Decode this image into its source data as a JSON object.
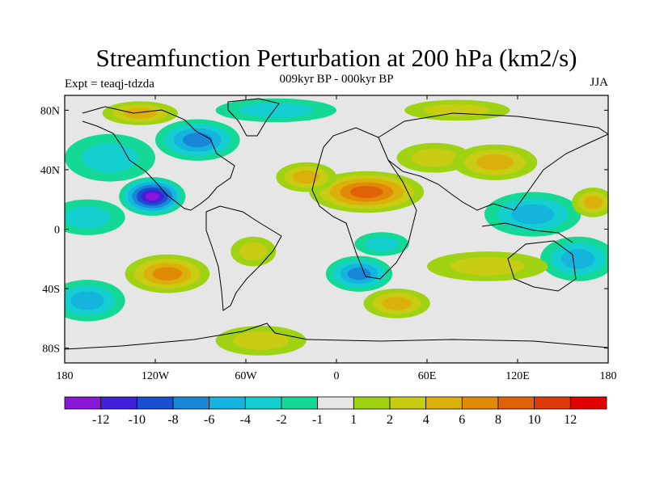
{
  "chart_data": {
    "type": "heatmap",
    "title": "Streamfunction Perturbation at 200 hPa (km2/s)",
    "subtitle": "009kyr BP - 000kyr BP",
    "left_label": "Expt = teaqj-tdzda",
    "right_label": "JJA",
    "x_range": [
      -180,
      180
    ],
    "y_range": [
      -90,
      90
    ],
    "x_ticks": [
      {
        "value": -180,
        "label": "180"
      },
      {
        "value": -120,
        "label": "120W"
      },
      {
        "value": -60,
        "label": "60W"
      },
      {
        "value": 0,
        "label": "0"
      },
      {
        "value": 60,
        "label": "60E"
      },
      {
        "value": 120,
        "label": "120E"
      },
      {
        "value": 180,
        "label": "180"
      }
    ],
    "y_ticks": [
      {
        "value": 80,
        "label": "80N"
      },
      {
        "value": 40,
        "label": "40N"
      },
      {
        "value": 0,
        "label": "0"
      },
      {
        "value": -40,
        "label": "40S"
      },
      {
        "value": -80,
        "label": "80S"
      }
    ],
    "colorbar": {
      "levels": [
        -14,
        -12,
        -10,
        -8,
        -6,
        -4,
        -2,
        -1,
        1,
        2,
        4,
        6,
        8,
        10,
        12,
        14
      ],
      "colors": [
        "#8a16d8",
        "#4020d8",
        "#1a4fd0",
        "#1a86d8",
        "#14b4de",
        "#13cfd0",
        "#14d896",
        "#e6e6e6",
        "#a0d214",
        "#c8cc12",
        "#dcb00a",
        "#e08a08",
        "#e06206",
        "#dc3a0a",
        "#e00000"
      ],
      "labels": [
        {
          "value": -12,
          "label": "-12"
        },
        {
          "value": -10,
          "label": "-10"
        },
        {
          "value": -8,
          "label": "-8"
        },
        {
          "value": -6,
          "label": "-6"
        },
        {
          "value": -4,
          "label": "-4"
        },
        {
          "value": -2,
          "label": "-2"
        },
        {
          "value": -1,
          "label": "-1"
        },
        {
          "value": 1,
          "label": "1"
        },
        {
          "value": 2,
          "label": "2"
        },
        {
          "value": 4,
          "label": "4"
        },
        {
          "value": 6,
          "label": "6"
        },
        {
          "value": 8,
          "label": "8"
        },
        {
          "value": 10,
          "label": "10"
        },
        {
          "value": 12,
          "label": "12"
        }
      ]
    },
    "field_centers": [
      {
        "lon": -122,
        "lat": 22,
        "value": -13,
        "rx": 22,
        "ry": 13
      },
      {
        "lon": -92,
        "lat": 60,
        "value": -7,
        "rx": 28,
        "ry": 14
      },
      {
        "lon": -150,
        "lat": 48,
        "value": -3,
        "rx": 30,
        "ry": 16
      },
      {
        "lon": -165,
        "lat": 8,
        "value": -3,
        "rx": 25,
        "ry": 12
      },
      {
        "lon": -40,
        "lat": 80,
        "value": -3,
        "rx": 40,
        "ry": 8
      },
      {
        "lon": 20,
        "lat": 25,
        "value": 9,
        "rx": 38,
        "ry": 14
      },
      {
        "lon": -20,
        "lat": 35,
        "value": 5,
        "rx": 20,
        "ry": 10
      },
      {
        "lon": 65,
        "lat": 48,
        "value": 3,
        "rx": 25,
        "ry": 10
      },
      {
        "lon": 105,
        "lat": 45,
        "value": 5,
        "rx": 28,
        "ry": 12
      },
      {
        "lon": 130,
        "lat": 10,
        "value": -5,
        "rx": 32,
        "ry": 15
      },
      {
        "lon": 160,
        "lat": -20,
        "value": -4,
        "rx": 25,
        "ry": 15
      },
      {
        "lon": 170,
        "lat": 18,
        "value": 4,
        "rx": 14,
        "ry": 10
      },
      {
        "lon": -112,
        "lat": -30,
        "value": 6,
        "rx": 28,
        "ry": 13
      },
      {
        "lon": -165,
        "lat": -48,
        "value": -5,
        "rx": 25,
        "ry": 14
      },
      {
        "lon": 15,
        "lat": -30,
        "value": -7,
        "rx": 22,
        "ry": 12
      },
      {
        "lon": 40,
        "lat": -50,
        "value": 5,
        "rx": 22,
        "ry": 10
      },
      {
        "lon": 100,
        "lat": -25,
        "value": 3,
        "rx": 40,
        "ry": 10
      },
      {
        "lon": -50,
        "lat": -75,
        "value": 2,
        "rx": 30,
        "ry": 10
      },
      {
        "lon": -130,
        "lat": 78,
        "value": 5,
        "rx": 25,
        "ry": 8
      },
      {
        "lon": 80,
        "lat": 80,
        "value": 3,
        "rx": 35,
        "ry": 7
      },
      {
        "lon": -55,
        "lat": -15,
        "value": 2,
        "rx": 15,
        "ry": 10
      },
      {
        "lon": 30,
        "lat": -10,
        "value": -2,
        "rx": 18,
        "ry": 8
      }
    ]
  }
}
